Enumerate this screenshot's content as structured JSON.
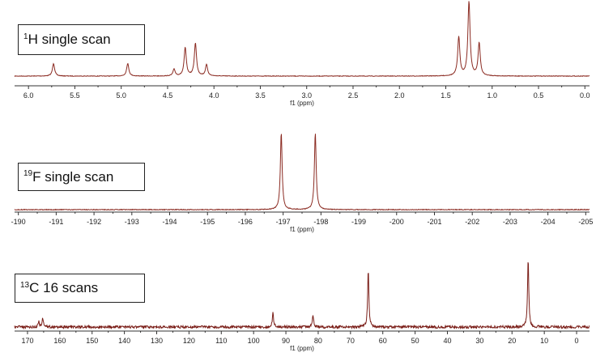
{
  "chart_data": [
    {
      "type": "line",
      "title_sup": "1",
      "title_text": "H single scan",
      "xlabel": "f1 (ppm)",
      "xlim": [
        6.15,
        -0.05
      ],
      "ticks": [
        "6.0",
        "5.5",
        "5.0",
        "4.5",
        "4.0",
        "3.5",
        "3.0",
        "2.5",
        "2.0",
        "1.5",
        "1.0",
        "0.5",
        "0.0"
      ],
      "tick_values": [
        6.0,
        5.5,
        5.0,
        4.5,
        4.0,
        3.5,
        3.0,
        2.5,
        2.0,
        1.5,
        1.0,
        0.5,
        0.0
      ],
      "line_color": "#8b2b22",
      "peaks": [
        {
          "x": 5.73,
          "h": 0.17
        },
        {
          "x": 4.93,
          "h": 0.17
        },
        {
          "x": 4.43,
          "h": 0.09
        },
        {
          "x": 4.31,
          "h": 0.38
        },
        {
          "x": 4.2,
          "h": 0.44
        },
        {
          "x": 4.08,
          "h": 0.15
        },
        {
          "x": 1.36,
          "h": 0.52
        },
        {
          "x": 1.25,
          "h": 1.0
        },
        {
          "x": 1.14,
          "h": 0.44
        }
      ]
    },
    {
      "type": "line",
      "title_sup": "19",
      "title_text": "F single scan",
      "xlabel": "f1 (ppm)",
      "xlim": [
        -189.9,
        -205.1
      ],
      "ticks": [
        "-190",
        "-191",
        "-192",
        "-193",
        "-194",
        "-195",
        "-196",
        "-197",
        "-198",
        "-199",
        "-200",
        "-201",
        "-202",
        "-203",
        "-204",
        "-205"
      ],
      "tick_values": [
        -190,
        -191,
        -192,
        -193,
        -194,
        -195,
        -196,
        -197,
        -198,
        -199,
        -200,
        -201,
        -202,
        -203,
        -204,
        -205
      ],
      "line_color": "#8b2b22",
      "peaks": [
        {
          "x": -196.95,
          "h": 1.0
        },
        {
          "x": -197.85,
          "h": 1.0
        }
      ]
    },
    {
      "type": "line",
      "title_sup": "13",
      "title_text": "C 16 scans",
      "xlabel": "f1 (ppm)",
      "xlim": [
        174,
        -4
      ],
      "ticks": [
        "170",
        "160",
        "150",
        "140",
        "130",
        "120",
        "110",
        "100",
        "90",
        "80",
        "70",
        "60",
        "50",
        "40",
        "30",
        "20",
        "10",
        "0"
      ],
      "tick_values": [
        170,
        160,
        150,
        140,
        130,
        120,
        110,
        100,
        90,
        80,
        70,
        60,
        50,
        40,
        30,
        20,
        10,
        0
      ],
      "line_color": "#7a1e18",
      "peaks": [
        {
          "x": 166.5,
          "h": 0.08
        },
        {
          "x": 165.3,
          "h": 0.12
        },
        {
          "x": 94.0,
          "h": 0.2
        },
        {
          "x": 81.6,
          "h": 0.18
        },
        {
          "x": 64.5,
          "h": 0.84
        },
        {
          "x": 15.0,
          "h": 1.0
        }
      ]
    }
  ]
}
